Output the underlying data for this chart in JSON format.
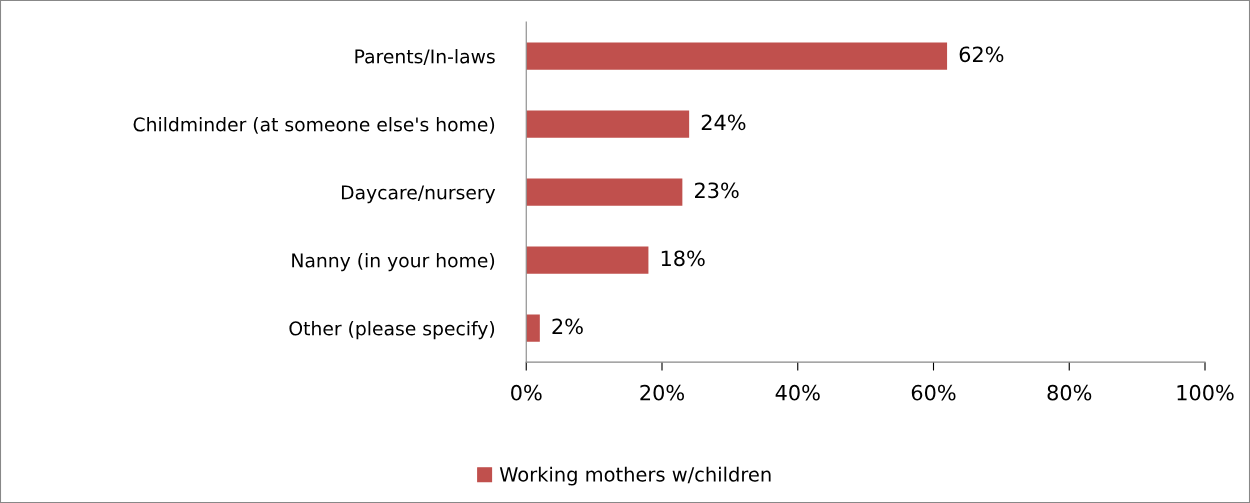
{
  "chart_data": {
    "type": "bar",
    "orientation": "horizontal",
    "categories": [
      "Parents/In-laws",
      "Childminder (at someone else's home)",
      "Daycare/nursery",
      "Nanny (in your home)",
      "Other (please specify)"
    ],
    "series": [
      {
        "name": "Working mothers w/children",
        "color": "#c0504d",
        "values": [
          62,
          24,
          23,
          18,
          2
        ],
        "value_labels": [
          "62%",
          "24%",
          "23%",
          "18%",
          "2%"
        ]
      }
    ],
    "xlim": [
      0,
      100
    ],
    "xticks": [
      {
        "value": 0,
        "label": "0%"
      },
      {
        "value": 20,
        "label": "20%"
      },
      {
        "value": 40,
        "label": "40%"
      },
      {
        "value": 60,
        "label": "60%"
      },
      {
        "value": 80,
        "label": "80%"
      },
      {
        "value": 100,
        "label": "100%"
      }
    ],
    "grid": false,
    "legend": "bottom"
  }
}
